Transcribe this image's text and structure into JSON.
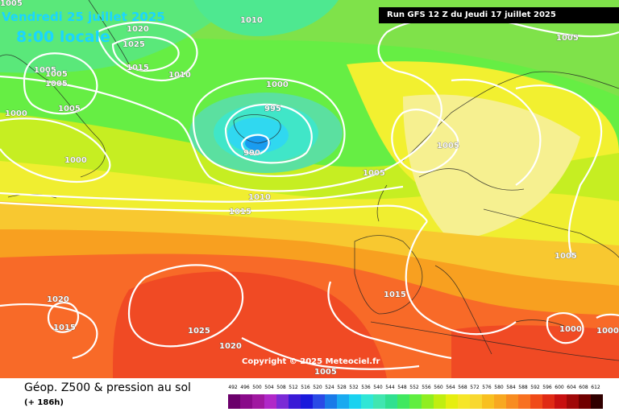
{
  "header": {
    "date": "Vendredi 25 juillet 2025",
    "time": "8:00 locale",
    "run": "Run GFS 12 Z du Jeudi 17 juillet 2025"
  },
  "copyright": "Copyright © 2025 Meteociel.fr",
  "footer": {
    "title": "Géop. Z500 & pression au sol",
    "subtitle": "(+ 186h)"
  },
  "isobar_labels": [
    "1005",
    "1010",
    "1020",
    "1025",
    "1015",
    "1010",
    "1005",
    "1005",
    "1005",
    "1000",
    "1000",
    "995",
    "990",
    "1000",
    "1005",
    "1005",
    "1010",
    "1015",
    "1005",
    "1020",
    "1015",
    "1025",
    "1020",
    "1015",
    "1005",
    "1000",
    "1000",
    "1005",
    "1005"
  ],
  "scale": {
    "values": [
      "492",
      "496",
      "500",
      "504",
      "508",
      "512",
      "516",
      "520",
      "524",
      "528",
      "532",
      "536",
      "540",
      "544",
      "548",
      "552",
      "556",
      "560",
      "564",
      "568",
      "572",
      "576",
      "580",
      "584",
      "588",
      "592",
      "596",
      "600",
      "604",
      "608",
      "612"
    ],
    "colors": [
      "#6b006b",
      "#8a0a8a",
      "#a018a0",
      "#b028c8",
      "#7a2ad6",
      "#3a1ad6",
      "#1a1adc",
      "#2a4ae6",
      "#1a7ae8",
      "#1aaaf0",
      "#1ad2f0",
      "#30e6d6",
      "#40e6b0",
      "#30e090",
      "#40e860",
      "#60ee40",
      "#90ee20",
      "#c0ee10",
      "#e6ee10",
      "#f6e628",
      "#f8d830",
      "#f8c020",
      "#f8a820",
      "#f88c20",
      "#f87020",
      "#f04a18",
      "#e02a14",
      "#c81010",
      "#a00808",
      "#700000",
      "#300000"
    ]
  }
}
